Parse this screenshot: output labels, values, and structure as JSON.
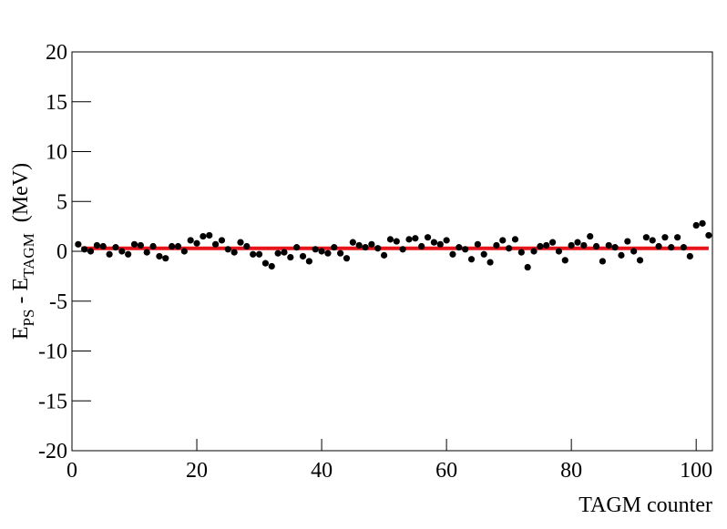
{
  "chart_data": {
    "type": "scatter",
    "ylabel": [
      "E",
      "PS",
      " - E",
      "TAGM",
      "  (MeV)"
    ],
    "xlabel": "TAGM counter",
    "xlim": [
      0,
      102.6
    ],
    "ylim": [
      -20,
      20
    ],
    "xticks": [
      0,
      20,
      40,
      60,
      80,
      100
    ],
    "yticks": [
      -20,
      -15,
      -10,
      -5,
      0,
      5,
      10,
      15,
      20
    ],
    "series": [
      {
        "color": "#000000",
        "x": [
          1,
          2,
          3,
          4,
          5,
          6,
          7,
          8,
          9,
          10,
          11,
          12,
          13,
          14,
          15,
          16,
          17,
          18,
          19,
          20,
          21,
          22,
          23,
          24,
          25,
          26,
          27,
          28,
          29,
          30,
          31,
          32,
          33,
          34,
          35,
          36,
          37,
          38,
          39,
          40,
          41,
          42,
          43,
          44,
          45,
          46,
          47,
          48,
          49,
          50,
          51,
          52,
          53,
          54,
          55,
          56,
          57,
          58,
          59,
          60,
          61,
          62,
          63,
          64,
          65,
          66,
          67,
          68,
          69,
          70,
          71,
          72,
          73,
          74,
          75,
          76,
          77,
          78,
          79,
          80,
          81,
          82,
          83,
          84,
          85,
          86,
          87,
          88,
          89,
          90,
          91,
          92,
          93,
          94,
          95,
          96,
          97,
          98,
          99,
          100,
          101,
          102
        ],
        "values": [
          0.7,
          0.2,
          0.0,
          0.6,
          0.5,
          -0.3,
          0.4,
          0.0,
          -0.3,
          0.7,
          0.6,
          -0.1,
          0.5,
          -0.5,
          -0.7,
          0.5,
          0.5,
          0.0,
          1.1,
          0.8,
          1.5,
          1.6,
          0.7,
          1.1,
          0.2,
          -0.1,
          0.9,
          0.5,
          -0.3,
          -0.3,
          -1.2,
          -1.5,
          -0.2,
          -0.1,
          -0.6,
          0.4,
          -0.5,
          -1.0,
          0.2,
          0.0,
          -0.2,
          0.4,
          -0.2,
          -0.7,
          0.9,
          0.6,
          0.4,
          0.7,
          0.3,
          -0.4,
          1.2,
          1.0,
          0.2,
          1.2,
          1.3,
          0.5,
          1.4,
          0.9,
          0.7,
          1.1,
          -0.3,
          0.4,
          0.2,
          -0.8,
          0.7,
          -0.3,
          -1.1,
          0.6,
          1.1,
          0.3,
          1.2,
          -0.1,
          -1.6,
          0.0,
          0.5,
          0.6,
          0.9,
          0.0,
          -0.9,
          0.6,
          0.9,
          0.6,
          1.5,
          0.5,
          -1.0,
          0.6,
          0.4,
          -0.4,
          1.0,
          0.0,
          -0.9,
          1.4,
          1.1,
          0.5,
          1.4,
          0.4,
          1.4,
          0.4,
          -0.5,
          2.6,
          2.8,
          1.6
        ]
      }
    ],
    "fit": {
      "color": "#e8141c",
      "x": [
        1.5,
        102
      ],
      "values": [
        0.3,
        0.3
      ]
    }
  }
}
